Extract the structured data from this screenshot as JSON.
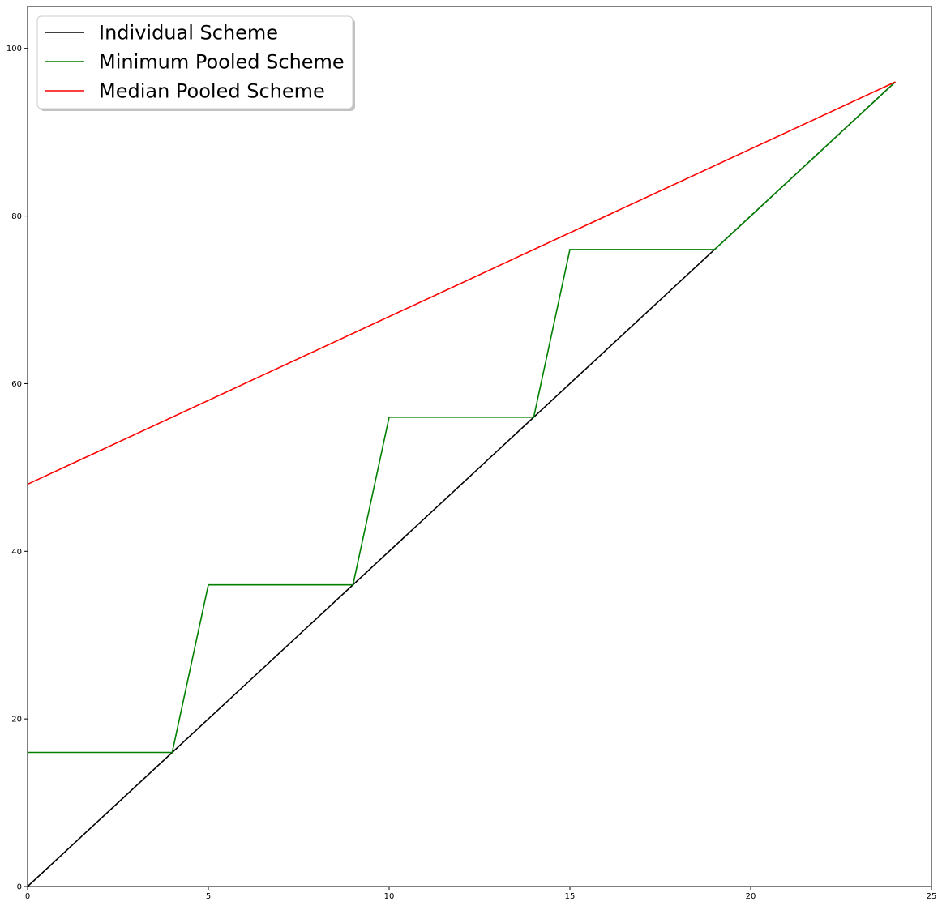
{
  "chart_data": {
    "type": "line",
    "title": "",
    "xlabel": "",
    "ylabel": "",
    "xlim": [
      0,
      25
    ],
    "ylim": [
      0,
      105
    ],
    "xticks": [
      0,
      5,
      10,
      15,
      20,
      25
    ],
    "yticks": [
      0,
      20,
      40,
      60,
      80,
      100
    ],
    "grid": false,
    "legend": {
      "position": "top-left"
    },
    "series": [
      {
        "name": "Individual Scheme",
        "color": "#000000",
        "x": [
          0,
          24
        ],
        "y": [
          0,
          96
        ]
      },
      {
        "name": "Minimum Pooled Scheme",
        "color": "#008000",
        "x": [
          0,
          4,
          5,
          9,
          10,
          14,
          15,
          19,
          24
        ],
        "y": [
          16,
          16,
          36,
          36,
          56,
          56,
          76,
          76,
          96
        ]
      },
      {
        "name": "Median Pooled Scheme",
        "color": "#ff0000",
        "x": [
          0,
          24
        ],
        "y": [
          48,
          96
        ]
      }
    ]
  }
}
